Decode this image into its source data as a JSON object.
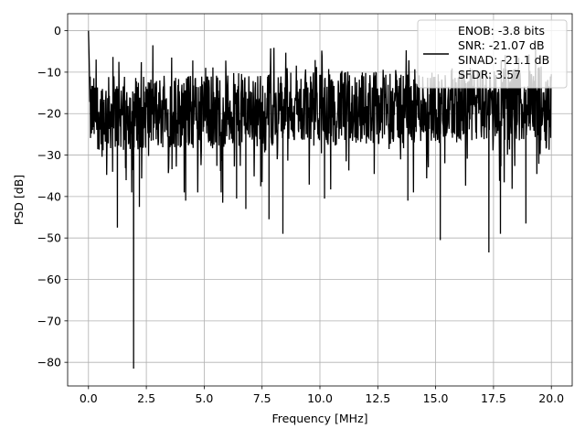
{
  "chart_data": {
    "type": "line",
    "xlabel": "Frequency [MHz]",
    "ylabel": "PSD [dB]",
    "xlim": [
      -0.9,
      20.9
    ],
    "ylim": [
      -85.7,
      4.1
    ],
    "xticks": [
      0.0,
      2.5,
      5.0,
      7.5,
      10.0,
      12.5,
      15.0,
      17.5,
      20.0
    ],
    "xtick_labels": [
      "0.0",
      "2.5",
      "5.0",
      "7.5",
      "10.0",
      "12.5",
      "15.0",
      "17.5",
      "20.0"
    ],
    "yticks": [
      0,
      -10,
      -20,
      -30,
      -40,
      -50,
      -60,
      -70,
      -80
    ],
    "ytick_labels": [
      "0",
      "−10",
      "−20",
      "−30",
      "−40",
      "−50",
      "−60",
      "−70",
      "−80"
    ],
    "grid": true,
    "legend_position": "top-right",
    "line_color": "#000000",
    "series": [
      {
        "legend_lines": [
          "ENOB: -3.8 bits",
          "SNR: -21.07 dB",
          "SINAD: -21.1 dB",
          "SFDR: 3.57"
        ],
        "noise_floor_db": -20,
        "x_range": [
          0,
          20
        ],
        "peaks": [
          {
            "x": 0.0,
            "y": 0.0
          },
          {
            "x": 0.03,
            "y": -7.0
          }
        ],
        "notches": [
          {
            "x": 1.25,
            "y": -47.5
          },
          {
            "x": 1.95,
            "y": -81.5
          },
          {
            "x": 2.2,
            "y": -42.5
          },
          {
            "x": 4.2,
            "y": -41.0
          },
          {
            "x": 5.8,
            "y": -41.5
          },
          {
            "x": 6.4,
            "y": -40.5
          },
          {
            "x": 6.8,
            "y": -43.0
          },
          {
            "x": 7.8,
            "y": -45.5
          },
          {
            "x": 8.4,
            "y": -49.0
          },
          {
            "x": 10.2,
            "y": -40.5
          },
          {
            "x": 13.8,
            "y": -41.0
          },
          {
            "x": 15.2,
            "y": -50.5
          },
          {
            "x": 17.3,
            "y": -53.5
          },
          {
            "x": 17.8,
            "y": -49.0
          },
          {
            "x": 18.9,
            "y": -46.5
          }
        ]
      }
    ]
  }
}
